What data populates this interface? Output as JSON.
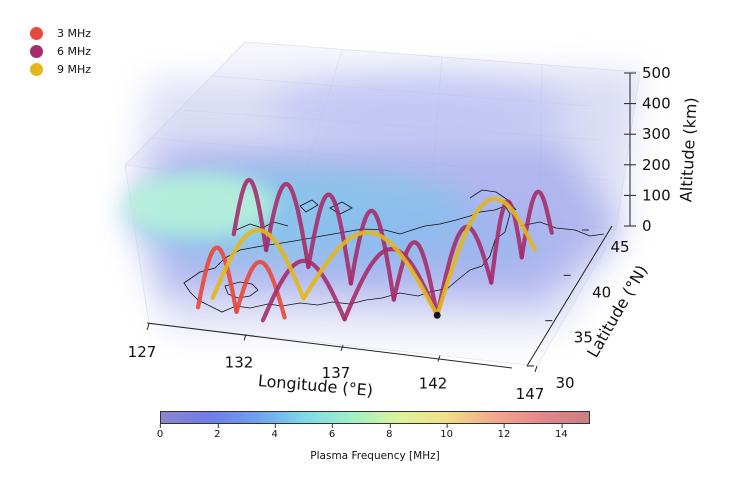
{
  "chart_data": {
    "type": "3d-line",
    "title": "",
    "xlabel": "Longitude (°E)",
    "ylabel": "Latitude (°N)",
    "zlabel": "Altitude (km)",
    "xlim": [
      127,
      147
    ],
    "ylim": [
      30,
      45
    ],
    "zlim": [
      0,
      500
    ],
    "x_ticks": [
      "127",
      "132",
      "137",
      "142",
      "147"
    ],
    "y_ticks": [
      "30",
      "35",
      "40",
      "45"
    ],
    "z_ticks": [
      "0",
      "100",
      "200",
      "300",
      "400",
      "500"
    ],
    "transmitter": {
      "lon": 141,
      "lat": 34
    },
    "series": [
      {
        "name": "3 MHz",
        "color": "#e8483a",
        "hops": [
          {
            "from": [
              129,
              32
            ],
            "to": [
              131,
              32
            ],
            "peak": 200
          },
          {
            "from": [
              131,
              32
            ],
            "to": [
              133.5,
              32
            ],
            "peak": 170
          }
        ]
      },
      {
        "name": "6 MHz",
        "color": "#a52e6a",
        "hops": [
          {
            "from": [
              141,
              34
            ],
            "to": [
              138.5,
              35
            ],
            "peak": 210
          },
          {
            "from": [
              138.5,
              35
            ],
            "to": [
              136,
              36
            ],
            "peak": 260
          },
          {
            "from": [
              136,
              36
            ],
            "to": [
              133.5,
              37
            ],
            "peak": 260
          },
          {
            "from": [
              133.5,
              37
            ],
            "to": [
              131,
              38
            ],
            "peak": 240
          },
          {
            "from": [
              131,
              38
            ],
            "to": [
              129,
              39
            ],
            "peak": 200
          },
          {
            "from": [
              141,
              34
            ],
            "to": [
              136.5,
              32.5
            ],
            "peak": 220
          },
          {
            "from": [
              136.5,
              32.5
            ],
            "to": [
              132.5,
              31.5
            ],
            "peak": 190
          },
          {
            "from": [
              141,
              34
            ],
            "to": [
              143,
              38
            ],
            "peak": 230
          },
          {
            "from": [
              143,
              38
            ],
            "to": [
              144,
              41
            ],
            "peak": 220
          },
          {
            "from": [
              144,
              41
            ],
            "to": [
              145,
              44
            ],
            "peak": 170
          }
        ]
      },
      {
        "name": "9 MHz",
        "color": "#e3b71c",
        "hops": [
          {
            "from": [
              141,
              34
            ],
            "to": [
              134,
              34
            ],
            "peak": 240
          },
          {
            "from": [
              134,
              34
            ],
            "to": [
              129.5,
              33
            ],
            "peak": 220
          },
          {
            "from": [
              141,
              34
            ],
            "to": [
              144.5,
              42
            ],
            "peak": 260
          }
        ]
      }
    ],
    "colorbar": {
      "label": "Plasma Frequency [MHz]",
      "min": 0,
      "max": 15,
      "ticks": [
        "0",
        "2",
        "4",
        "6",
        "8",
        "10",
        "12",
        "14"
      ],
      "stops": [
        "#8a86cf",
        "#6f7de8",
        "#6fa0ee",
        "#7dd8ea",
        "#9ef0c8",
        "#dcf39a",
        "#f2df87",
        "#f3a98c",
        "#e4888a",
        "#c97f82"
      ]
    }
  },
  "legend": {
    "items": [
      {
        "label": "3 MHz",
        "color": "#e8483a"
      },
      {
        "label": "6 MHz",
        "color": "#a52e6a"
      },
      {
        "label": "9 MHz",
        "color": "#e3b71c"
      }
    ]
  }
}
